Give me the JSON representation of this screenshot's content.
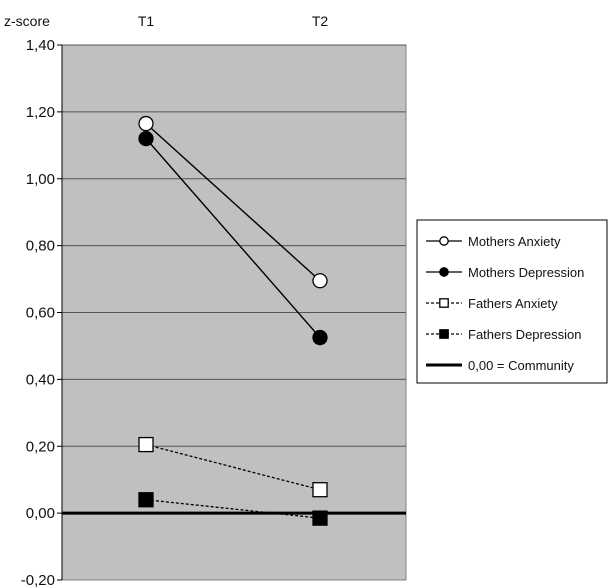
{
  "chart_data": {
    "type": "line",
    "y_axis_header": "z-score",
    "categories": [
      "T1",
      "T2"
    ],
    "ylim": [
      -0.2,
      1.4
    ],
    "y_ticks": [
      "-0,20",
      "0,00",
      "0,20",
      "0,40",
      "0,60",
      "0,80",
      "1,00",
      "1,20",
      "1,40"
    ],
    "y_tick_values": [
      -0.2,
      0,
      0.2,
      0.4,
      0.6,
      0.8,
      1.0,
      1.2,
      1.4
    ],
    "grid": true,
    "plot_background": "#c0c0c0",
    "legend_position": "right",
    "series": [
      {
        "name": "Mothers Anxiety",
        "values": [
          1.165,
          0.695
        ],
        "line_style": "solid",
        "marker": "circle-open"
      },
      {
        "name": "Mothers Depression",
        "values": [
          1.12,
          0.525
        ],
        "line_style": "solid",
        "marker": "circle-filled"
      },
      {
        "name": "Fathers Anxiety",
        "values": [
          0.205,
          0.07
        ],
        "line_style": "dashed",
        "marker": "square-open"
      },
      {
        "name": "Fathers Depression",
        "values": [
          0.04,
          -0.015
        ],
        "line_style": "dashed",
        "marker": "square-filled"
      }
    ],
    "reference_line": {
      "value": 0,
      "label": "0,00 = Community"
    }
  }
}
